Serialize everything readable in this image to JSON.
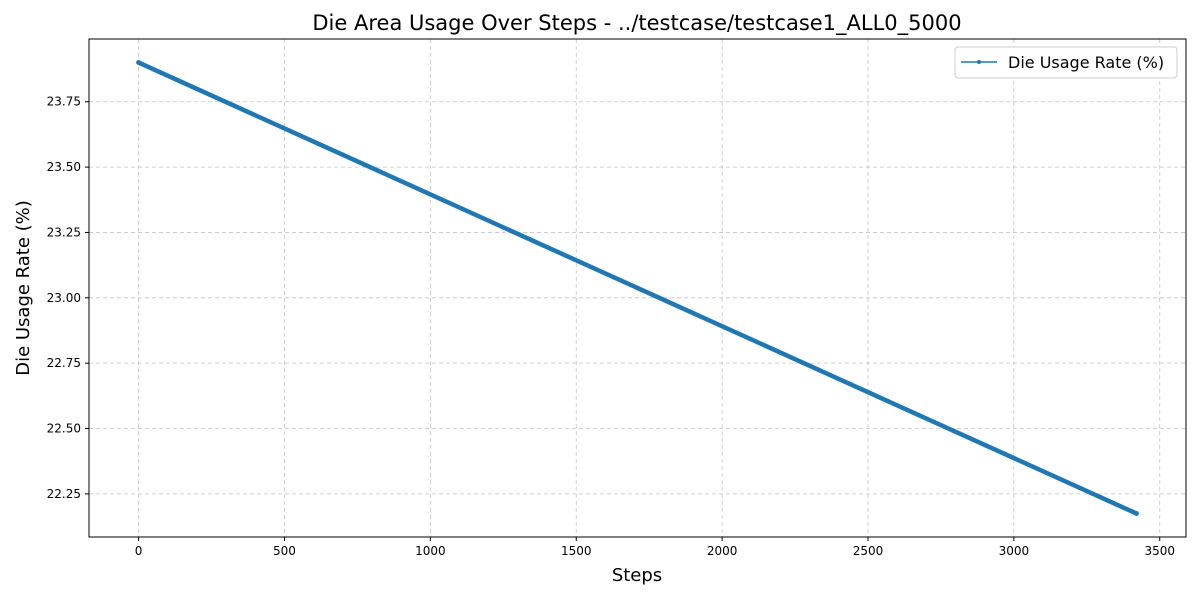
{
  "chart_data": {
    "type": "line",
    "title": "Die Area Usage Over Steps - ../testcase/testcase1_ALL0_5000",
    "xlabel": "Steps",
    "ylabel": "Die Usage Rate (%)",
    "xlim": [
      -170,
      3590
    ],
    "ylim": [
      22.085,
      23.99
    ],
    "xticks": [
      0,
      500,
      1000,
      1500,
      2000,
      2500,
      3000,
      3500
    ],
    "yticks": [
      22.25,
      22.5,
      22.75,
      23.0,
      23.25,
      23.5,
      23.75
    ],
    "xtick_labels": [
      "0",
      "500",
      "1000",
      "1500",
      "2000",
      "2500",
      "3000",
      "3500"
    ],
    "ytick_labels": [
      "22.25",
      "22.50",
      "22.75",
      "23.00",
      "23.25",
      "23.50",
      "23.75"
    ],
    "grid": true,
    "legend_position": "top-right",
    "series": [
      {
        "name": "Die Usage Rate (%)",
        "color": "#1f77b4",
        "marker": "dot",
        "x": [
          0,
          3420
        ],
        "y": [
          23.9,
          22.175
        ]
      }
    ]
  }
}
